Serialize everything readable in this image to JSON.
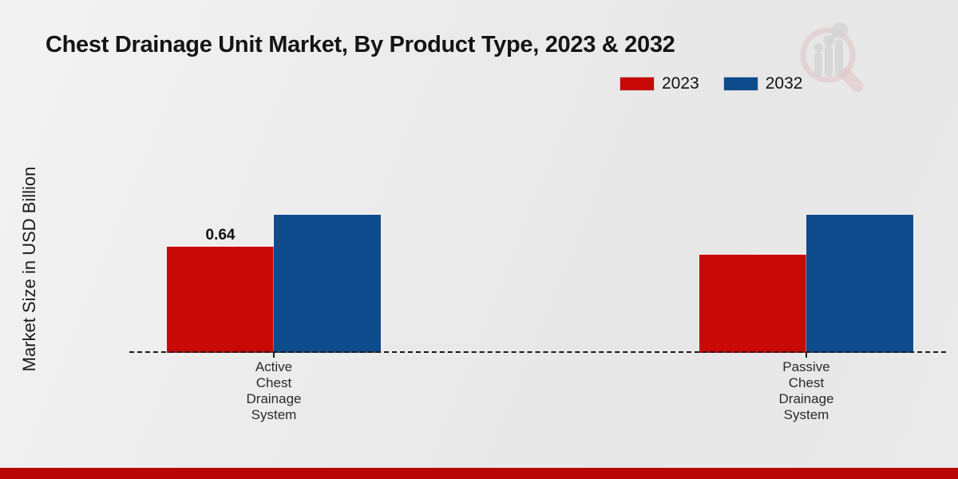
{
  "title": "Chest Drainage Unit Market, By Product Type, 2023 & 2032",
  "y_axis_label": "Market Size in USD Billion",
  "legend": {
    "position": "top-right",
    "items": [
      {
        "label": "2023",
        "color": "#c90808"
      },
      {
        "label": "2032",
        "color": "#0f4c8e"
      }
    ]
  },
  "chart_data": {
    "type": "bar",
    "title": "Chest Drainage Unit Market, By Product Type, 2023 & 2032",
    "xlabel": "",
    "ylabel": "Market Size in USD Billion",
    "categories": [
      "Active Chest Drainage System",
      "Passive Chest Drainage System"
    ],
    "series": [
      {
        "name": "2023",
        "color": "#c90808",
        "values": [
          0.64,
          0.59
        ]
      },
      {
        "name": "2032",
        "color": "#0f4c8e",
        "values": [
          0.83,
          0.83
        ]
      }
    ],
    "annotations": [
      {
        "series": 0,
        "category": 0,
        "text": "0.64"
      }
    ],
    "ylim": [
      0,
      0.9
    ],
    "grid": false,
    "baseline_style": "dashed",
    "legend_position": "top-right"
  },
  "watermark": {
    "icon": "magnifier-bar-chart-logo"
  },
  "footer": {
    "band_color": "#b80505"
  }
}
